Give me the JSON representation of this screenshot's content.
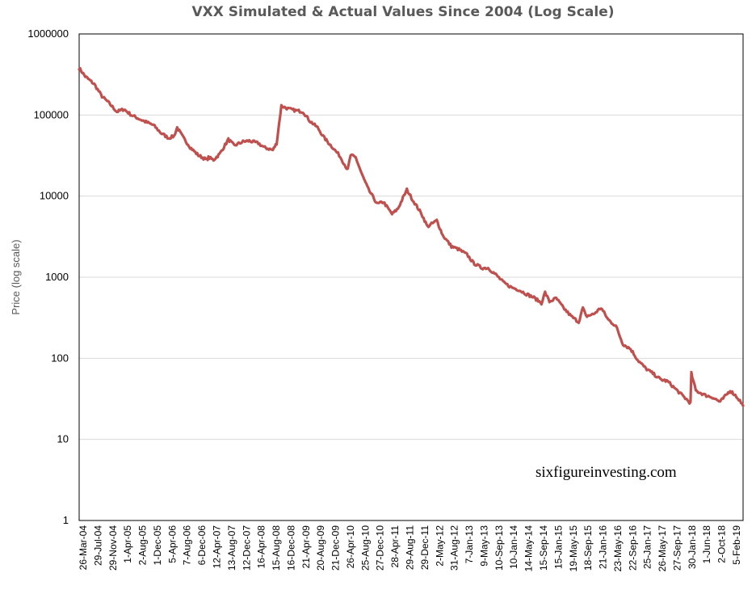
{
  "chart_data": {
    "type": "line",
    "title": "VXX Simulated & Actual Values Since 2004 (Log Scale)",
    "xlabel": "",
    "ylabel": "Price (log scale)",
    "yscale": "log",
    "ylim": [
      1,
      1000000
    ],
    "ytick_labels": [
      "1000000",
      "100000",
      "10000",
      "1000",
      "100",
      "10",
      "1"
    ],
    "grid": "horizontal",
    "watermark": "sixfigureinvesting.com",
    "xtick_labels": [
      "26-Mar-04",
      "29-Jul-04",
      "29-Nov-04",
      "1-Apr-05",
      "2-Aug-05",
      "1-Dec-05",
      "5-Apr-06",
      "7-Aug-06",
      "6-Dec-06",
      "12-Apr-07",
      "13-Aug-07",
      "12-Dec-07",
      "16-Apr-08",
      "15-Aug-08",
      "16-Dec-08",
      "21-Apr-09",
      "20-Aug-09",
      "21-Dec-09",
      "26-Apr-10",
      "25-Aug-10",
      "27-Dec-10",
      "28-Apr-11",
      "29-Aug-11",
      "29-Dec-11",
      "2-May-12",
      "31-Aug-12",
      "7-Jan-13",
      "9-May-13",
      "10-Sep-13",
      "10-Jan-14",
      "14-May-14",
      "15-Sep-14",
      "15-Jan-15",
      "19-May-15",
      "18-Sep-15",
      "21-Jan-16",
      "23-May-16",
      "22-Sep-16",
      "25-Jan-17",
      "26-May-17",
      "27-Sep-17",
      "30-Jan-18",
      "1-Jun-18",
      "2-Oct-18",
      "5-Feb-19"
    ],
    "series": [
      {
        "name": "",
        "color": "#c0504d",
        "x": [
          "2004-03-26",
          "2004-05-15",
          "2004-07-29",
          "2004-10-01",
          "2004-11-29",
          "2005-02-01",
          "2005-04-01",
          "2005-06-01",
          "2005-08-02",
          "2005-10-01",
          "2005-12-01",
          "2006-02-01",
          "2006-04-05",
          "2006-05-20",
          "2006-06-15",
          "2006-08-07",
          "2006-10-01",
          "2006-12-06",
          "2007-02-15",
          "2007-03-01",
          "2007-04-12",
          "2007-06-01",
          "2007-08-13",
          "2007-10-01",
          "2007-12-12",
          "2008-02-01",
          "2008-04-16",
          "2008-06-01",
          "2008-08-15",
          "2008-09-15",
          "2008-10-24",
          "2008-12-16",
          "2009-02-01",
          "2009-04-21",
          "2009-06-15",
          "2009-08-20",
          "2009-10-15",
          "2009-12-21",
          "2010-02-15",
          "2010-04-26",
          "2010-05-20",
          "2010-07-01",
          "2010-08-25",
          "2010-10-15",
          "2010-12-27",
          "2011-02-15",
          "2011-04-28",
          "2011-06-15",
          "2011-08-29",
          "2011-10-15",
          "2011-12-29",
          "2012-02-15",
          "2012-05-02",
          "2012-06-20",
          "2012-08-31",
          "2012-11-01",
          "2013-01-07",
          "2013-03-01",
          "2013-05-09",
          "2013-07-01",
          "2013-09-10",
          "2013-11-10",
          "2014-01-10",
          "2014-03-10",
          "2014-05-14",
          "2014-07-15",
          "2014-09-15",
          "2014-10-15",
          "2014-11-20",
          "2015-01-15",
          "2015-03-15",
          "2015-05-19",
          "2015-07-20",
          "2015-08-24",
          "2015-09-18",
          "2015-11-20",
          "2016-01-21",
          "2016-03-20",
          "2016-05-23",
          "2016-07-20",
          "2016-09-22",
          "2016-11-20",
          "2017-01-25",
          "2017-03-25",
          "2017-05-26",
          "2017-07-25",
          "2017-09-27",
          "2017-12-01",
          "2018-01-30",
          "2018-02-06",
          "2018-03-15",
          "2018-06-01",
          "2018-08-01",
          "2018-10-02",
          "2018-12-24",
          "2019-02-05",
          "2019-03-15",
          "2019-04-10"
        ],
        "y": [
          380000,
          300000,
          240000,
          170000,
          140000,
          110000,
          118000,
          100000,
          90000,
          82000,
          75000,
          60000,
          52000,
          55000,
          70000,
          52000,
          40000,
          32000,
          28000,
          30000,
          28000,
          33000,
          50000,
          42000,
          47000,
          48000,
          45000,
          40000,
          37000,
          45000,
          130000,
          120000,
          115000,
          110000,
          85000,
          70000,
          52000,
          40000,
          32000,
          21000,
          32000,
          30000,
          18000,
          12000,
          8000,
          8500,
          6000,
          7000,
          12000,
          9000,
          6000,
          4200,
          5000,
          3300,
          2400,
          2200,
          1900,
          1500,
          1300,
          1300,
          1050,
          850,
          750,
          700,
          620,
          560,
          480,
          650,
          500,
          550,
          420,
          330,
          280,
          420,
          330,
          350,
          420,
          300,
          250,
          150,
          130,
          95,
          75,
          65,
          55,
          52,
          42,
          34,
          28,
          65,
          40,
          35,
          33,
          29,
          40,
          35,
          30,
          26
        ]
      }
    ]
  }
}
